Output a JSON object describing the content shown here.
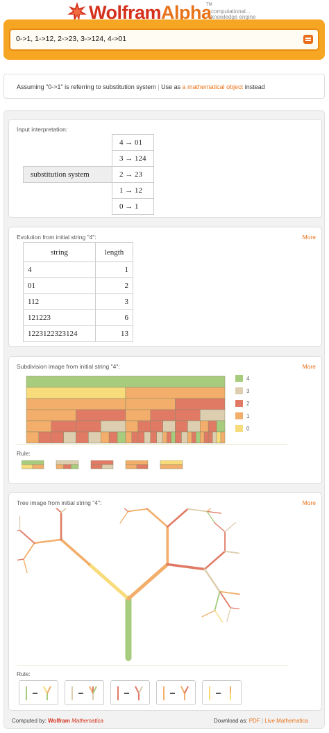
{
  "brand": {
    "wolfram": "Wolfram",
    "alpha": "Alpha",
    "tm": "TM",
    "tagline_1": "computational...",
    "tagline_2": "knowledge engine"
  },
  "search": {
    "query": "0->1, 1->12, 2->23, 3->124, 4->01"
  },
  "assumption": {
    "prefix": "Assuming \"0->1\" is referring to substitution system",
    "sep": "|",
    "use_as": "Use as",
    "link": "a mathematical object",
    "suffix": "instead"
  },
  "input_pod": {
    "title": "Input interpretation:",
    "label": "substitution system",
    "rules": [
      "4 → 01",
      "3 → 124",
      "2 → 23",
      "1 → 12",
      "0 → 1"
    ]
  },
  "evolution_pod": {
    "title": "Evolution from initial string \"4\":",
    "more": "More",
    "headers": [
      "string",
      "length"
    ],
    "rows": [
      {
        "string": "4",
        "length": "1"
      },
      {
        "string": "01",
        "length": "2"
      },
      {
        "string": "112",
        "length": "3"
      },
      {
        "string": "121223",
        "length": "6"
      },
      {
        "string": "1223122323124",
        "length": "13"
      }
    ]
  },
  "subdivision_pod": {
    "title": "Subdivision image from initial string \"4\":",
    "more": "More",
    "rule_label": "Rule:",
    "legend": [
      {
        "label": "4",
        "color": "#a8cc7e"
      },
      {
        "label": "3",
        "color": "#ddceb0"
      },
      {
        "label": "2",
        "color": "#e07a64"
      },
      {
        "label": "1",
        "color": "#f2ae6a"
      },
      {
        "label": "0",
        "color": "#f8dc7c"
      }
    ]
  },
  "tree_pod": {
    "title": "Tree image from initial string \"4\":",
    "more": "More",
    "rule_label": "Rule:"
  },
  "footer": {
    "computed_by": "Computed by:",
    "wolfram": "Wolfram",
    "mathematica": "Mathematica",
    "download_as": "Download as:",
    "pdf": "PDF",
    "sep": "|",
    "live": "Live Mathematica"
  }
}
